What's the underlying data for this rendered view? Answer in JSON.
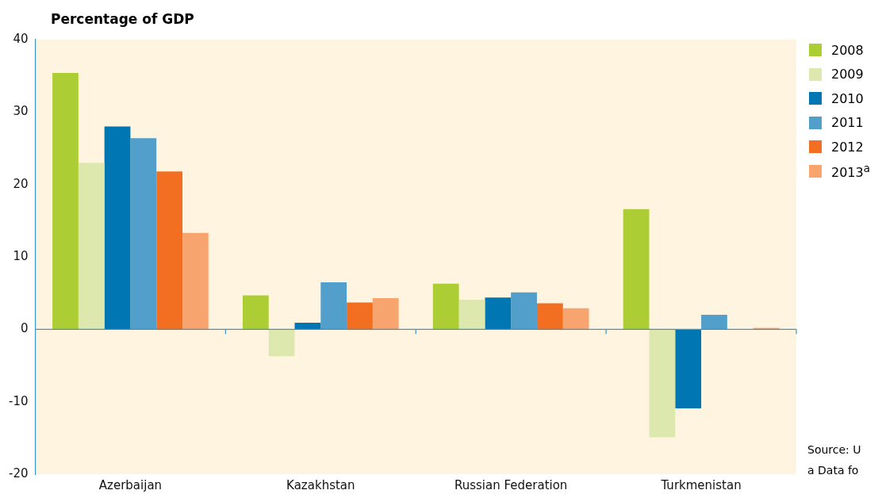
{
  "chart_data": {
    "type": "bar",
    "title": "Percentage of GDP",
    "categories": [
      "Azerbaijan",
      "Kazakhstan",
      "Russian Federation",
      "Turkmenistan"
    ],
    "series": [
      {
        "name": "2008",
        "color": "#acce34",
        "values": [
          35.4,
          4.7,
          6.3,
          16.6
        ]
      },
      {
        "name": "2009",
        "color": "#dce8ae",
        "values": [
          23.0,
          -3.7,
          4.1,
          -14.9
        ]
      },
      {
        "name": "2010",
        "color": "#0076b2",
        "values": [
          28.0,
          0.9,
          4.4,
          -10.9
        ]
      },
      {
        "name": "2011",
        "color": "#529fcb",
        "values": [
          26.4,
          6.5,
          5.1,
          2.0
        ]
      },
      {
        "name": "2012",
        "color": "#f26f21",
        "values": [
          21.8,
          3.7,
          3.6,
          null
        ]
      },
      {
        "name": "2013$^{a}$",
        "color": "#f8a46f",
        "values": [
          13.3,
          4.3,
          2.9,
          0.2
        ]
      }
    ],
    "ylim": [
      -20,
      40
    ],
    "yticks": [
      -20,
      -10,
      0,
      10,
      20,
      30,
      40
    ],
    "grid": false,
    "legend": "top right",
    "ref_lines": [
      {
        "axis": "y",
        "value": 0,
        "color": "#3d95c6"
      }
    ],
    "annotations": [
      "Source: U",
      "a Data fo"
    ]
  }
}
